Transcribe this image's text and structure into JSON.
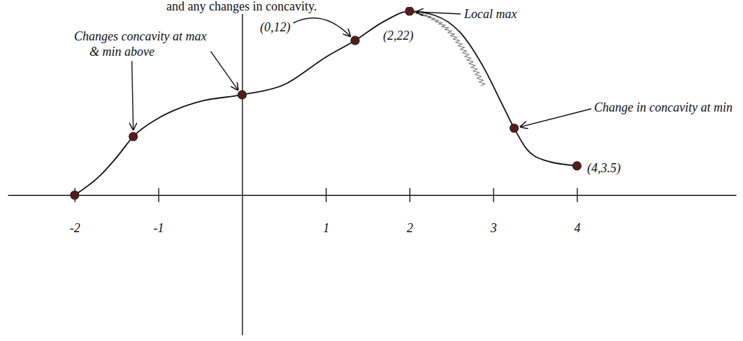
{
  "chart_data": {
    "type": "line",
    "title": "and any changes in concavity.",
    "xlim": [
      -2.8,
      5.9
    ],
    "xticks": [
      -2,
      -1,
      1,
      2,
      3,
      4
    ],
    "ylim": [
      -16.7,
      22.5
    ],
    "yticks": [],
    "tick_labels": "x",
    "series": [
      {
        "type": "line",
        "color": "#111111",
        "line_style": "solid",
        "x": [
          -2,
          -1.7,
          -1.5,
          -1.3,
          -1.0,
          -0.5,
          0,
          0.5,
          1.0,
          1.35,
          1.7,
          2,
          2.3,
          2.6,
          2.9,
          3.1,
          3.25,
          3.4,
          3.6,
          4
        ],
        "values": [
          0,
          2.3,
          4.5,
          7,
          9.2,
          11.2,
          12,
          13.2,
          16.5,
          18.5,
          20.8,
          22,
          21.5,
          19.5,
          15,
          11,
          8,
          5.5,
          4.2,
          3.5
        ]
      },
      {
        "type": "scatter",
        "color": "#5b1a1a",
        "marker": "circle",
        "x": [
          -2,
          -1.3,
          0,
          1.35,
          2,
          3.25,
          4
        ],
        "values": [
          0,
          7,
          12,
          18.5,
          22,
          8,
          3.5
        ]
      }
    ],
    "annotations": [
      "Changes concavity at max & min above",
      "(0,12)",
      "(2,22)",
      "Local max",
      "Change in concavity at min",
      "(4,3.5)"
    ]
  }
}
